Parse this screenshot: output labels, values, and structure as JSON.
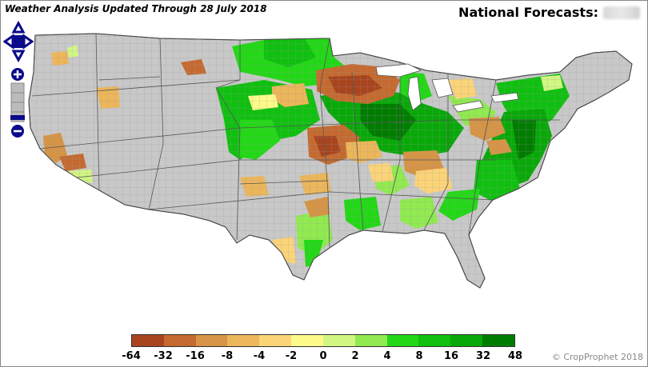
{
  "header": {
    "title": "Weather Analysis Updated Through 28 July 2018",
    "forecast_label": "National Forecasts:"
  },
  "controls": {
    "pan": "pan-control",
    "zoom_in": "+",
    "zoom_out": "−"
  },
  "legend": {
    "ticks": [
      "-64",
      "-32",
      "-16",
      "-8",
      "-4",
      "-2",
      "0",
      "2",
      "4",
      "8",
      "16",
      "32",
      "48"
    ],
    "colors": [
      "#a8441e",
      "#c46a30",
      "#d69446",
      "#ecb65a",
      "#fcd478",
      "#fdfa8a",
      "#d2f682",
      "#90ea50",
      "#22d816",
      "#10c010",
      "#08a808",
      "#007c00"
    ]
  },
  "footer": {
    "copyright": "© CropProphet 2018"
  },
  "colors": {
    "nodata": "#c8c8c8",
    "border": "#555555"
  }
}
